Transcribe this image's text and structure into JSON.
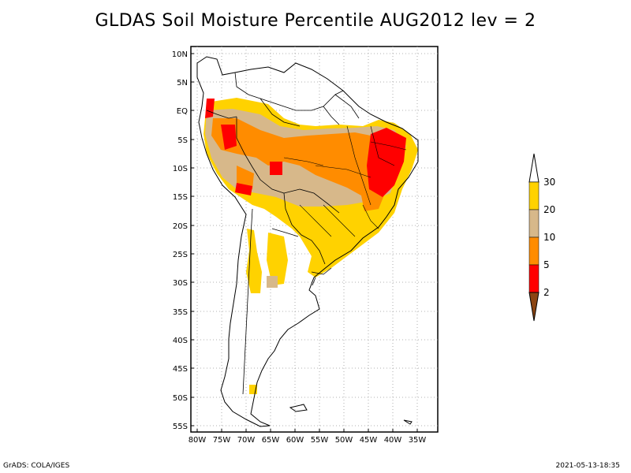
{
  "title": "GLDAS Soil Moisture Percentile AUG2012 lev = 2",
  "lat_labels": [
    "10N",
    "5N",
    "EQ",
    "5S",
    "10S",
    "15S",
    "20S",
    "25S",
    "30S",
    "35S",
    "40S",
    "45S",
    "50S",
    "55S"
  ],
  "lon_labels": [
    "80W",
    "75W",
    "70W",
    "65W",
    "60W",
    "55W",
    "50W",
    "45W",
    "40W",
    "35W"
  ],
  "colorbar": {
    "labels": [
      "30",
      "20",
      "10",
      "5",
      "2"
    ],
    "colors": {
      "above_30": "#ffffff",
      "20_30": "#ffd200",
      "10_20": "#d7b88a",
      "5_10": "#ff8c00",
      "2_5": "#ff0000",
      "below_2": "#8b4513"
    }
  },
  "footer": {
    "left": "GrADS: COLA/IGES",
    "right": "2021-05-13-18:35"
  }
}
